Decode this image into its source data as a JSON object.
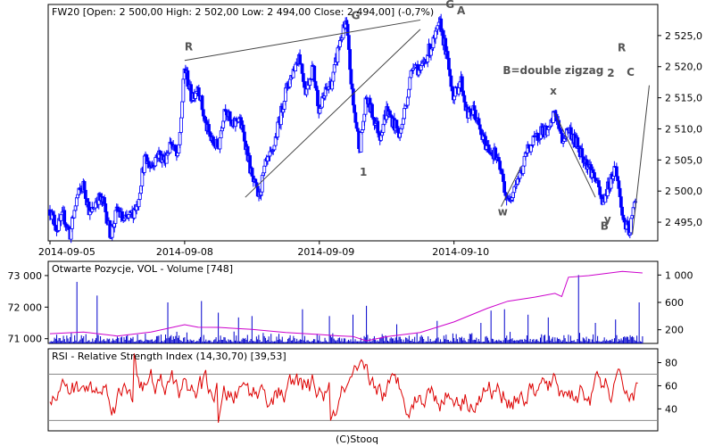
{
  "chart_data": [
    {
      "type": "candlestick",
      "title": "FW20 [Open: 2 500,00  High: 2 502,00  Low: 2 494,00  Close: 2 494,00] (-0,7%)",
      "x_tick_labels": [
        "2014-09-05",
        "2014-09-08",
        "2014-09-09",
        "2014-09-10"
      ],
      "y_tick_labels": [
        "2 495,0",
        "2 500,0",
        "2 505,0",
        "2 510,0",
        "2 515,0",
        "2 520,0",
        "2 525,0"
      ],
      "y_ticks": [
        2495,
        2500,
        2505,
        2510,
        2515,
        2520,
        2525
      ],
      "ylim": [
        2492,
        2530
      ],
      "bar_color": "#0000ff",
      "price_path": [
        [
          0,
          2497
        ],
        [
          2,
          2494
        ],
        [
          4,
          2496
        ],
        [
          6,
          2493
        ],
        [
          8,
          2499
        ],
        [
          10,
          2501
        ],
        [
          12,
          2496
        ],
        [
          14,
          2499
        ],
        [
          16,
          2498
        ],
        [
          18,
          2493
        ],
        [
          20,
          2497
        ],
        [
          22,
          2495
        ],
        [
          24,
          2496
        ],
        [
          26,
          2498
        ],
        [
          28,
          2505
        ],
        [
          30,
          2504
        ],
        [
          32,
          2506
        ],
        [
          34,
          2505
        ],
        [
          36,
          2508
        ],
        [
          38,
          2505
        ],
        [
          40,
          2520
        ],
        [
          42,
          2515
        ],
        [
          44,
          2517
        ],
        [
          46,
          2511
        ],
        [
          48,
          2508
        ],
        [
          50,
          2507
        ],
        [
          52,
          2514
        ],
        [
          54,
          2510
        ],
        [
          56,
          2512
        ],
        [
          58,
          2508
        ],
        [
          60,
          2502
        ],
        [
          62,
          2499
        ],
        [
          64,
          2504
        ],
        [
          66,
          2506
        ],
        [
          68,
          2511
        ],
        [
          70,
          2516
        ],
        [
          72,
          2519
        ],
        [
          74,
          2522
        ],
        [
          76,
          2516
        ],
        [
          78,
          2520
        ],
        [
          80,
          2513
        ],
        [
          82,
          2516
        ],
        [
          84,
          2518
        ],
        [
          86,
          2524
        ],
        [
          88,
          2527
        ],
        [
          90,
          2514
        ],
        [
          92,
          2507
        ],
        [
          94,
          2515
        ],
        [
          96,
          2512
        ],
        [
          98,
          2509
        ],
        [
          100,
          2513
        ],
        [
          102,
          2511
        ],
        [
          104,
          2509
        ],
        [
          106,
          2515
        ],
        [
          108,
          2521
        ],
        [
          110,
          2519
        ],
        [
          112,
          2522
        ],
        [
          114,
          2524
        ],
        [
          116,
          2527
        ],
        [
          118,
          2521
        ],
        [
          120,
          2515
        ],
        [
          122,
          2518
        ],
        [
          124,
          2512
        ],
        [
          126,
          2513
        ],
        [
          128,
          2509
        ],
        [
          130,
          2507
        ],
        [
          132,
          2506
        ],
        [
          134,
          2503
        ],
        [
          136,
          2498
        ],
        [
          138,
          2501
        ],
        [
          140,
          2503
        ],
        [
          142,
          2507
        ],
        [
          144,
          2508
        ],
        [
          146,
          2510
        ],
        [
          148,
          2509
        ],
        [
          150,
          2513
        ],
        [
          152,
          2508
        ],
        [
          154,
          2510
        ],
        [
          156,
          2508
        ],
        [
          158,
          2506
        ],
        [
          160,
          2504
        ],
        [
          162,
          2502
        ],
        [
          164,
          2498
        ],
        [
          166,
          2501
        ],
        [
          168,
          2504
        ],
        [
          170,
          2496
        ],
        [
          172,
          2493
        ],
        [
          174,
          2499
        ]
      ],
      "trendlines": [
        {
          "from": [
            40,
            2521
          ],
          "to": [
            110,
            2527.5
          ]
        },
        {
          "from": [
            58,
            2499
          ],
          "to": [
            110,
            2526
          ]
        },
        {
          "from": [
            134,
            2497.5
          ],
          "to": [
            140,
            2504
          ]
        },
        {
          "from": [
            150,
            2512.5
          ],
          "to": [
            162,
            2499
          ]
        },
        {
          "from": [
            173,
            2493
          ],
          "to": [
            178,
            2517
          ]
        }
      ],
      "annotations": [
        {
          "text": "R",
          "x": 40,
          "y": 2522.6
        },
        {
          "text": "G",
          "x": 89.5,
          "y": 2527.6
        },
        {
          "text": "G",
          "x": 117.5,
          "y": 2529.4
        },
        {
          "text": "A",
          "x": 120.9,
          "y": 2528.4
        },
        {
          "text": "1",
          "x": 92,
          "y": 2502.5
        },
        {
          "text": "B=double zigzag",
          "x": 134.5,
          "y": 2518.8
        },
        {
          "text": "x",
          "x": 148.5,
          "y": 2515.5
        },
        {
          "text": "w",
          "x": 133,
          "y": 2496.1
        },
        {
          "text": "2",
          "x": 165.5,
          "y": 2518.4
        },
        {
          "text": "R",
          "x": 168.6,
          "y": 2522.5
        },
        {
          "text": "C",
          "x": 171.3,
          "y": 2518.5
        },
        {
          "text": "y",
          "x": 164.6,
          "y": 2494.9
        },
        {
          "text": "B",
          "x": 163.5,
          "y": 2493.8
        }
      ]
    },
    {
      "type": "bar+line",
      "title": "Otwarte Pozycje, VOL - Volume [748]",
      "left_tick_labels": [
        "71 000",
        "72 000",
        "73 000"
      ],
      "left_ticks": [
        71000,
        72000,
        73000
      ],
      "left_ylim": [
        70850,
        73450
      ],
      "right_tick_labels": [
        "200",
        "600",
        "1 000"
      ],
      "right_ticks": [
        200,
        600,
        1000
      ],
      "right_ylim": [
        0,
        1200
      ],
      "volume_color": "#0000cc",
      "open_interest_color": "#cc00cc",
      "open_interest_path": [
        [
          0,
          71150
        ],
        [
          10,
          71200
        ],
        [
          20,
          71100
        ],
        [
          30,
          71200
        ],
        [
          40,
          71450
        ],
        [
          44,
          71350
        ],
        [
          50,
          71350
        ],
        [
          60,
          71300
        ],
        [
          70,
          71200
        ],
        [
          80,
          71150
        ],
        [
          86,
          71100
        ],
        [
          90,
          71050
        ],
        [
          94,
          70950
        ],
        [
          100,
          71050
        ],
        [
          110,
          71200
        ],
        [
          120,
          71550
        ],
        [
          130,
          71950
        ],
        [
          136,
          72200
        ],
        [
          144,
          72300
        ],
        [
          150,
          72450
        ],
        [
          152,
          72350
        ],
        [
          154,
          72950
        ],
        [
          160,
          73000
        ],
        [
          170,
          73150
        ],
        [
          176,
          73100
        ]
      ],
      "volume_spikes": [
        [
          8,
          900
        ],
        [
          14,
          700
        ],
        [
          35,
          600
        ],
        [
          45,
          620
        ],
        [
          50,
          450
        ],
        [
          56,
          380
        ],
        [
          60,
          400
        ],
        [
          75,
          500
        ],
        [
          83,
          400
        ],
        [
          90,
          420
        ],
        [
          94,
          550
        ],
        [
          103,
          280
        ],
        [
          115,
          330
        ],
        [
          128,
          300
        ],
        [
          131,
          480
        ],
        [
          135,
          500
        ],
        [
          142,
          420
        ],
        [
          148,
          380
        ],
        [
          157,
          1000
        ],
        [
          162,
          300
        ],
        [
          168,
          350
        ],
        [
          175,
          600
        ]
      ]
    },
    {
      "type": "line",
      "title": "RSI - Relative Strength Index (14,30,70) [39,53]",
      "y_tick_labels": [
        "40",
        "60",
        "80"
      ],
      "y_ticks": [
        40,
        60,
        80
      ],
      "ylim": [
        21,
        92
      ],
      "reference_lines": [
        30,
        70
      ],
      "line_color": "#dd0000",
      "n_points": 420,
      "seed": 7
    }
  ],
  "footer": "(C)Stooq"
}
